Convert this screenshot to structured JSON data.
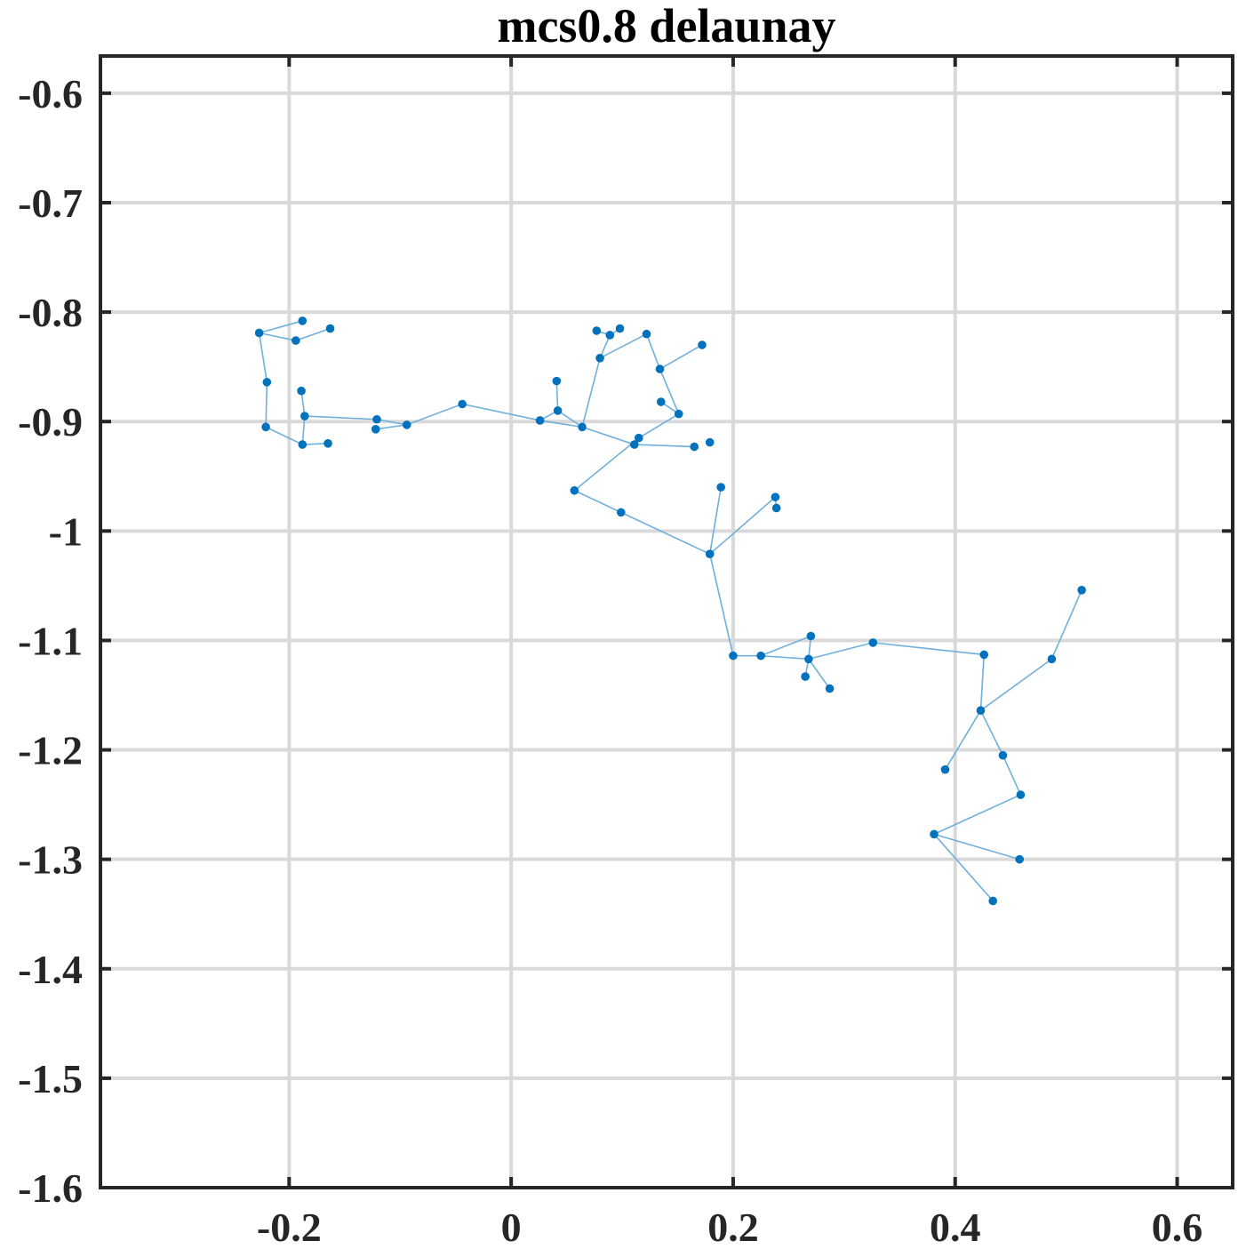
{
  "chart_data": {
    "type": "scatter",
    "title": "mcs0.8 delaunay",
    "xlabel": "",
    "ylabel": "",
    "xlim": [
      -0.37,
      0.65
    ],
    "ylim": [
      -1.6,
      -0.566
    ],
    "xticks": [
      -0.2,
      0,
      0.2,
      0.4,
      0.6
    ],
    "xtick_labels": [
      "-0.2",
      "0",
      "0.2",
      "0.4",
      "0.6"
    ],
    "yticks": [
      -0.6,
      -0.7,
      -0.8,
      -0.9,
      -1.0,
      -1.1,
      -1.2,
      -1.3,
      -1.4,
      -1.5,
      -1.6
    ],
    "ytick_labels": [
      "-0.6",
      "-0.7",
      "-0.8",
      "-0.9",
      "-1",
      "-1.1",
      "-1.2",
      "-1.3",
      "-1.4",
      "-1.5",
      "-1.6"
    ],
    "grid": true,
    "colors": {
      "points": "#0072bd",
      "edges": "#6fb0dd",
      "grid": "#d9d9d9",
      "axes": "#262626"
    },
    "points": [
      {
        "x": -0.227,
        "y": -0.819
      },
      {
        "x": -0.188,
        "y": -0.808
      },
      {
        "x": -0.194,
        "y": -0.826
      },
      {
        "x": -0.163,
        "y": -0.815
      },
      {
        "x": -0.22,
        "y": -0.864
      },
      {
        "x": -0.221,
        "y": -0.905
      },
      {
        "x": -0.189,
        "y": -0.872
      },
      {
        "x": -0.186,
        "y": -0.895
      },
      {
        "x": -0.188,
        "y": -0.921
      },
      {
        "x": -0.165,
        "y": -0.92
      },
      {
        "x": -0.121,
        "y": -0.898
      },
      {
        "x": -0.122,
        "y": -0.907
      },
      {
        "x": -0.094,
        "y": -0.903
      },
      {
        "x": -0.044,
        "y": -0.884
      },
      {
        "x": 0.026,
        "y": -0.899
      },
      {
        "x": 0.041,
        "y": -0.863
      },
      {
        "x": 0.042,
        "y": -0.89
      },
      {
        "x": 0.064,
        "y": -0.905
      },
      {
        "x": 0.077,
        "y": -0.817
      },
      {
        "x": 0.089,
        "y": -0.821
      },
      {
        "x": 0.098,
        "y": -0.815
      },
      {
        "x": 0.08,
        "y": -0.842
      },
      {
        "x": 0.122,
        "y": -0.82
      },
      {
        "x": 0.134,
        "y": -0.852
      },
      {
        "x": 0.172,
        "y": -0.83
      },
      {
        "x": 0.135,
        "y": -0.882
      },
      {
        "x": 0.151,
        "y": -0.893
      },
      {
        "x": 0.115,
        "y": -0.915
      },
      {
        "x": 0.111,
        "y": -0.921
      },
      {
        "x": 0.165,
        "y": -0.923
      },
      {
        "x": 0.179,
        "y": -0.919
      },
      {
        "x": 0.057,
        "y": -0.963
      },
      {
        "x": 0.099,
        "y": -0.983
      },
      {
        "x": 0.189,
        "y": -0.96
      },
      {
        "x": 0.238,
        "y": -0.969
      },
      {
        "x": 0.239,
        "y": -0.979
      },
      {
        "x": 0.179,
        "y": -1.021
      },
      {
        "x": 0.2,
        "y": -1.114
      },
      {
        "x": 0.225,
        "y": -1.114
      },
      {
        "x": 0.27,
        "y": -1.096
      },
      {
        "x": 0.268,
        "y": -1.117
      },
      {
        "x": 0.265,
        "y": -1.133
      },
      {
        "x": 0.287,
        "y": -1.144
      },
      {
        "x": 0.326,
        "y": -1.102
      },
      {
        "x": 0.426,
        "y": -1.113
      },
      {
        "x": 0.487,
        "y": -1.117
      },
      {
        "x": 0.514,
        "y": -1.054
      },
      {
        "x": 0.423,
        "y": -1.164
      },
      {
        "x": 0.443,
        "y": -1.205
      },
      {
        "x": 0.391,
        "y": -1.218
      },
      {
        "x": 0.459,
        "y": -1.241
      },
      {
        "x": 0.381,
        "y": -1.277
      },
      {
        "x": 0.458,
        "y": -1.3
      },
      {
        "x": 0.434,
        "y": -1.338
      }
    ],
    "edges": [
      [
        0,
        1
      ],
      [
        0,
        2
      ],
      [
        2,
        3
      ],
      [
        0,
        4
      ],
      [
        4,
        5
      ],
      [
        5,
        8
      ],
      [
        6,
        7
      ],
      [
        7,
        8
      ],
      [
        8,
        9
      ],
      [
        7,
        10
      ],
      [
        11,
        12
      ],
      [
        10,
        12
      ],
      [
        12,
        13
      ],
      [
        13,
        14
      ],
      [
        14,
        17
      ],
      [
        15,
        16
      ],
      [
        16,
        14
      ],
      [
        16,
        17
      ],
      [
        18,
        19
      ],
      [
        19,
        20
      ],
      [
        19,
        21
      ],
      [
        21,
        17
      ],
      [
        21,
        22
      ],
      [
        22,
        23
      ],
      [
        23,
        24
      ],
      [
        23,
        26
      ],
      [
        25,
        26
      ],
      [
        26,
        27
      ],
      [
        17,
        28
      ],
      [
        28,
        29
      ],
      [
        28,
        27
      ],
      [
        27,
        31
      ],
      [
        31,
        32
      ],
      [
        32,
        36
      ],
      [
        33,
        36
      ],
      [
        34,
        36
      ],
      [
        34,
        35
      ],
      [
        36,
        37
      ],
      [
        37,
        38
      ],
      [
        38,
        39
      ],
      [
        38,
        40
      ],
      [
        39,
        40
      ],
      [
        40,
        41
      ],
      [
        40,
        42
      ],
      [
        40,
        43
      ],
      [
        43,
        44
      ],
      [
        44,
        47
      ],
      [
        45,
        46
      ],
      [
        45,
        47
      ],
      [
        47,
        48
      ],
      [
        47,
        49
      ],
      [
        48,
        50
      ],
      [
        50,
        51
      ],
      [
        51,
        52
      ],
      [
        51,
        53
      ]
    ]
  }
}
